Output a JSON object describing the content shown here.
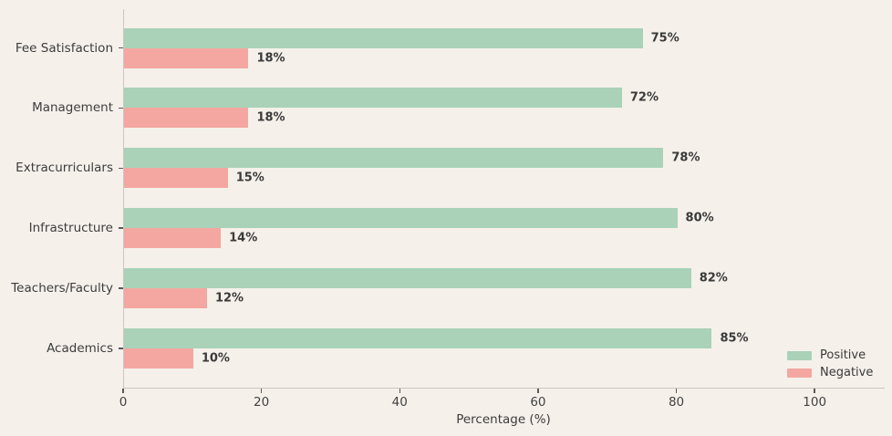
{
  "chart_data": {
    "type": "bar",
    "orientation": "horizontal",
    "title": "",
    "xlabel": "Percentage (%)",
    "ylabel": "",
    "xlim": [
      0,
      110
    ],
    "x_ticks": [
      0,
      20,
      40,
      60,
      80,
      100
    ],
    "grid": false,
    "legend_position": "lower right",
    "value_label_suffix": "%",
    "categories": [
      "Fee Satisfaction",
      "Management",
      "Extracurriculars",
      "Infrastructure",
      "Teachers/Faculty",
      "Academics"
    ],
    "series": [
      {
        "name": "Positive",
        "color": "#a9d2b8",
        "values": [
          75,
          72,
          78,
          80,
          82,
          85
        ]
      },
      {
        "name": "Negative",
        "color": "#f4a7a1",
        "values": [
          18,
          18,
          15,
          14,
          12,
          10
        ]
      }
    ]
  },
  "colors": {
    "background": "#f5f0ea",
    "spine": "#cbc7c1",
    "tick": "#5a5a5a",
    "text": "#3d3d3d",
    "value_text": "#3a3a3a"
  }
}
